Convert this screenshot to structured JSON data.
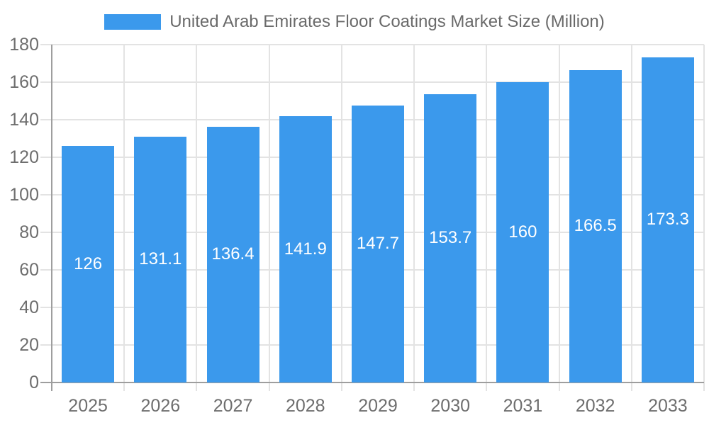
{
  "chart_data": {
    "type": "bar",
    "title": "United Arab Emirates Floor Coatings Market Size (Million)",
    "categories": [
      "2025",
      "2026",
      "2027",
      "2028",
      "2029",
      "2030",
      "2031",
      "2032",
      "2033"
    ],
    "values": [
      126,
      131.1,
      136.4,
      141.9,
      147.7,
      153.7,
      160,
      166.5,
      173.3
    ],
    "value_labels": [
      "126",
      "131.1",
      "136.4",
      "141.9",
      "147.7",
      "153.7",
      "160",
      "166.5",
      "173.3"
    ],
    "xlabel": "",
    "ylabel": "",
    "ylim": [
      0,
      180
    ],
    "ytick_step": 20,
    "ytick_labels": [
      "0",
      "20",
      "40",
      "60",
      "80",
      "100",
      "120",
      "140",
      "160",
      "180"
    ],
    "grid": "horizontal value lines and vertical category-boundary lines",
    "legend_position": "top-center",
    "value_label_position": "center-of-bar",
    "colors": {
      "bar": "#3B99EC",
      "value_label_text": "#FFFFFF",
      "axis_line": "#9E9E9E",
      "gridline": "#E3E3E3",
      "axis_text": "#6E6E6E",
      "title_text": "#6A6A6A",
      "background": "#FFFFFF"
    }
  }
}
